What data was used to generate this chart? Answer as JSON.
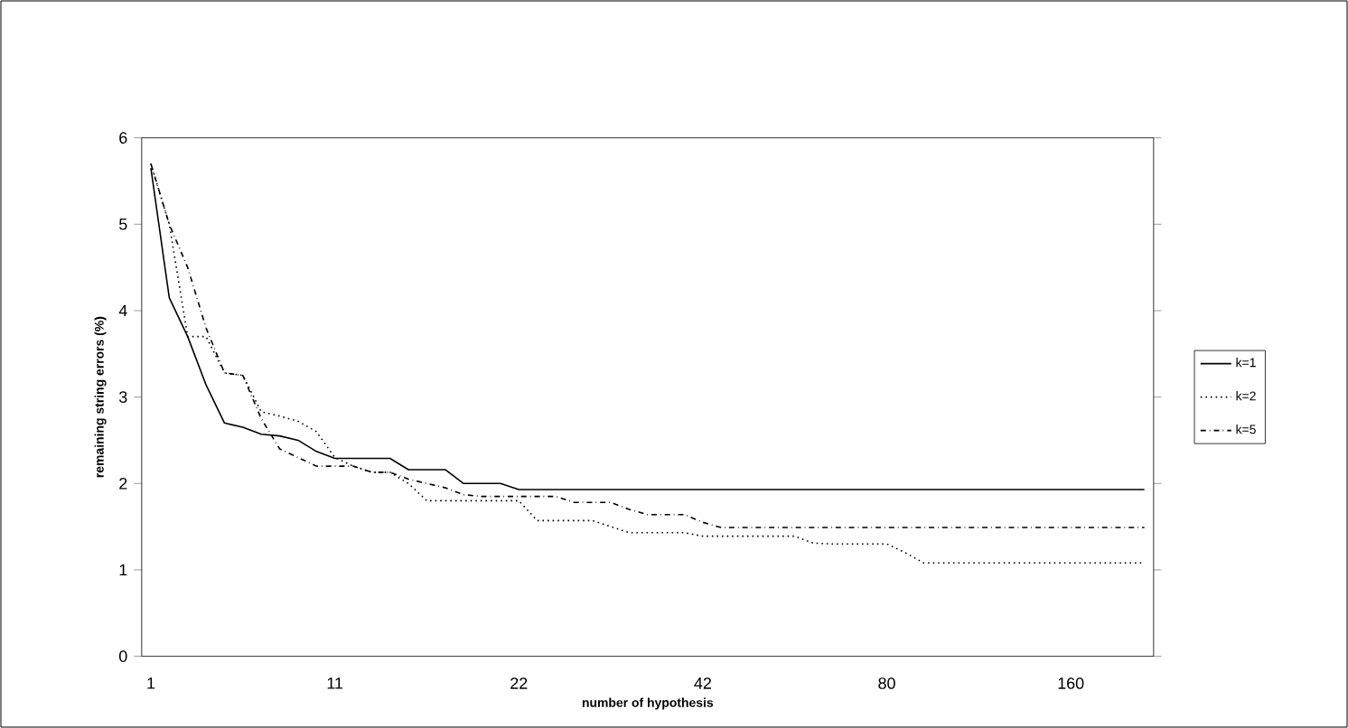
{
  "chart_data": {
    "type": "line",
    "xlabel": "number of hypothesis",
    "ylabel": "remaining string errors (%)",
    "categories": [
      "1",
      null,
      null,
      null,
      null,
      null,
      null,
      null,
      null,
      null,
      "11",
      null,
      null,
      null,
      null,
      null,
      null,
      null,
      null,
      null,
      "22",
      null,
      null,
      null,
      null,
      null,
      null,
      null,
      null,
      null,
      "42",
      null,
      null,
      null,
      null,
      null,
      null,
      null,
      null,
      null,
      "80",
      null,
      null,
      null,
      null,
      null,
      null,
      null,
      null,
      null,
      "160",
      null,
      null,
      null,
      null
    ],
    "series": [
      {
        "name": "k=1",
        "color": "#000000",
        "line_style": "solid",
        "values": [
          5.65,
          4.15,
          3.7,
          3.14,
          2.7,
          2.65,
          2.57,
          2.55,
          2.5,
          2.37,
          2.29,
          2.29,
          2.29,
          2.29,
          2.16,
          2.16,
          2.16,
          2.0,
          2.0,
          2.0,
          1.93,
          1.93,
          1.93,
          1.93,
          1.93,
          1.93,
          1.93,
          1.93,
          1.93,
          1.93,
          1.93,
          1.93,
          1.93,
          1.93,
          1.93,
          1.93,
          1.93,
          1.93,
          1.93,
          1.93,
          1.93,
          1.93,
          1.93,
          1.93,
          1.93,
          1.93,
          1.93,
          1.93,
          1.93,
          1.93,
          1.93,
          1.93,
          1.93,
          1.93,
          1.93
        ]
      },
      {
        "name": "k=2",
        "color": "#000000",
        "line_style": "dotted",
        "values": [
          5.7,
          5.0,
          3.7,
          3.7,
          3.28,
          3.25,
          2.83,
          2.78,
          2.72,
          2.6,
          2.3,
          2.2,
          2.13,
          2.13,
          2.0,
          1.8,
          1.8,
          1.8,
          1.8,
          1.8,
          1.8,
          1.57,
          1.57,
          1.57,
          1.57,
          1.5,
          1.43,
          1.43,
          1.43,
          1.43,
          1.39,
          1.39,
          1.39,
          1.39,
          1.39,
          1.39,
          1.31,
          1.3,
          1.3,
          1.3,
          1.3,
          1.2,
          1.08,
          1.08,
          1.08,
          1.08,
          1.08,
          1.08,
          1.08,
          1.08,
          1.08,
          1.08,
          1.08,
          1.08,
          1.08
        ]
      },
      {
        "name": "k=5",
        "color": "#000000",
        "line_style": "dashdotted",
        "values": [
          5.7,
          5.0,
          4.5,
          3.8,
          3.28,
          3.25,
          2.75,
          2.4,
          2.3,
          2.2,
          2.2,
          2.2,
          2.13,
          2.13,
          2.05,
          2.0,
          1.95,
          1.87,
          1.85,
          1.85,
          1.85,
          1.85,
          1.85,
          1.78,
          1.78,
          1.78,
          1.7,
          1.64,
          1.64,
          1.64,
          1.55,
          1.49,
          1.49,
          1.49,
          1.49,
          1.49,
          1.49,
          1.49,
          1.49,
          1.49,
          1.49,
          1.49,
          1.49,
          1.49,
          1.49,
          1.49,
          1.49,
          1.49,
          1.49,
          1.49,
          1.49,
          1.49,
          1.49,
          1.49,
          1.49
        ]
      }
    ],
    "ylim": [
      0,
      6
    ],
    "yticks": [
      0,
      1,
      2,
      3,
      4,
      5,
      6
    ],
    "legend": "right",
    "marker": "none"
  }
}
